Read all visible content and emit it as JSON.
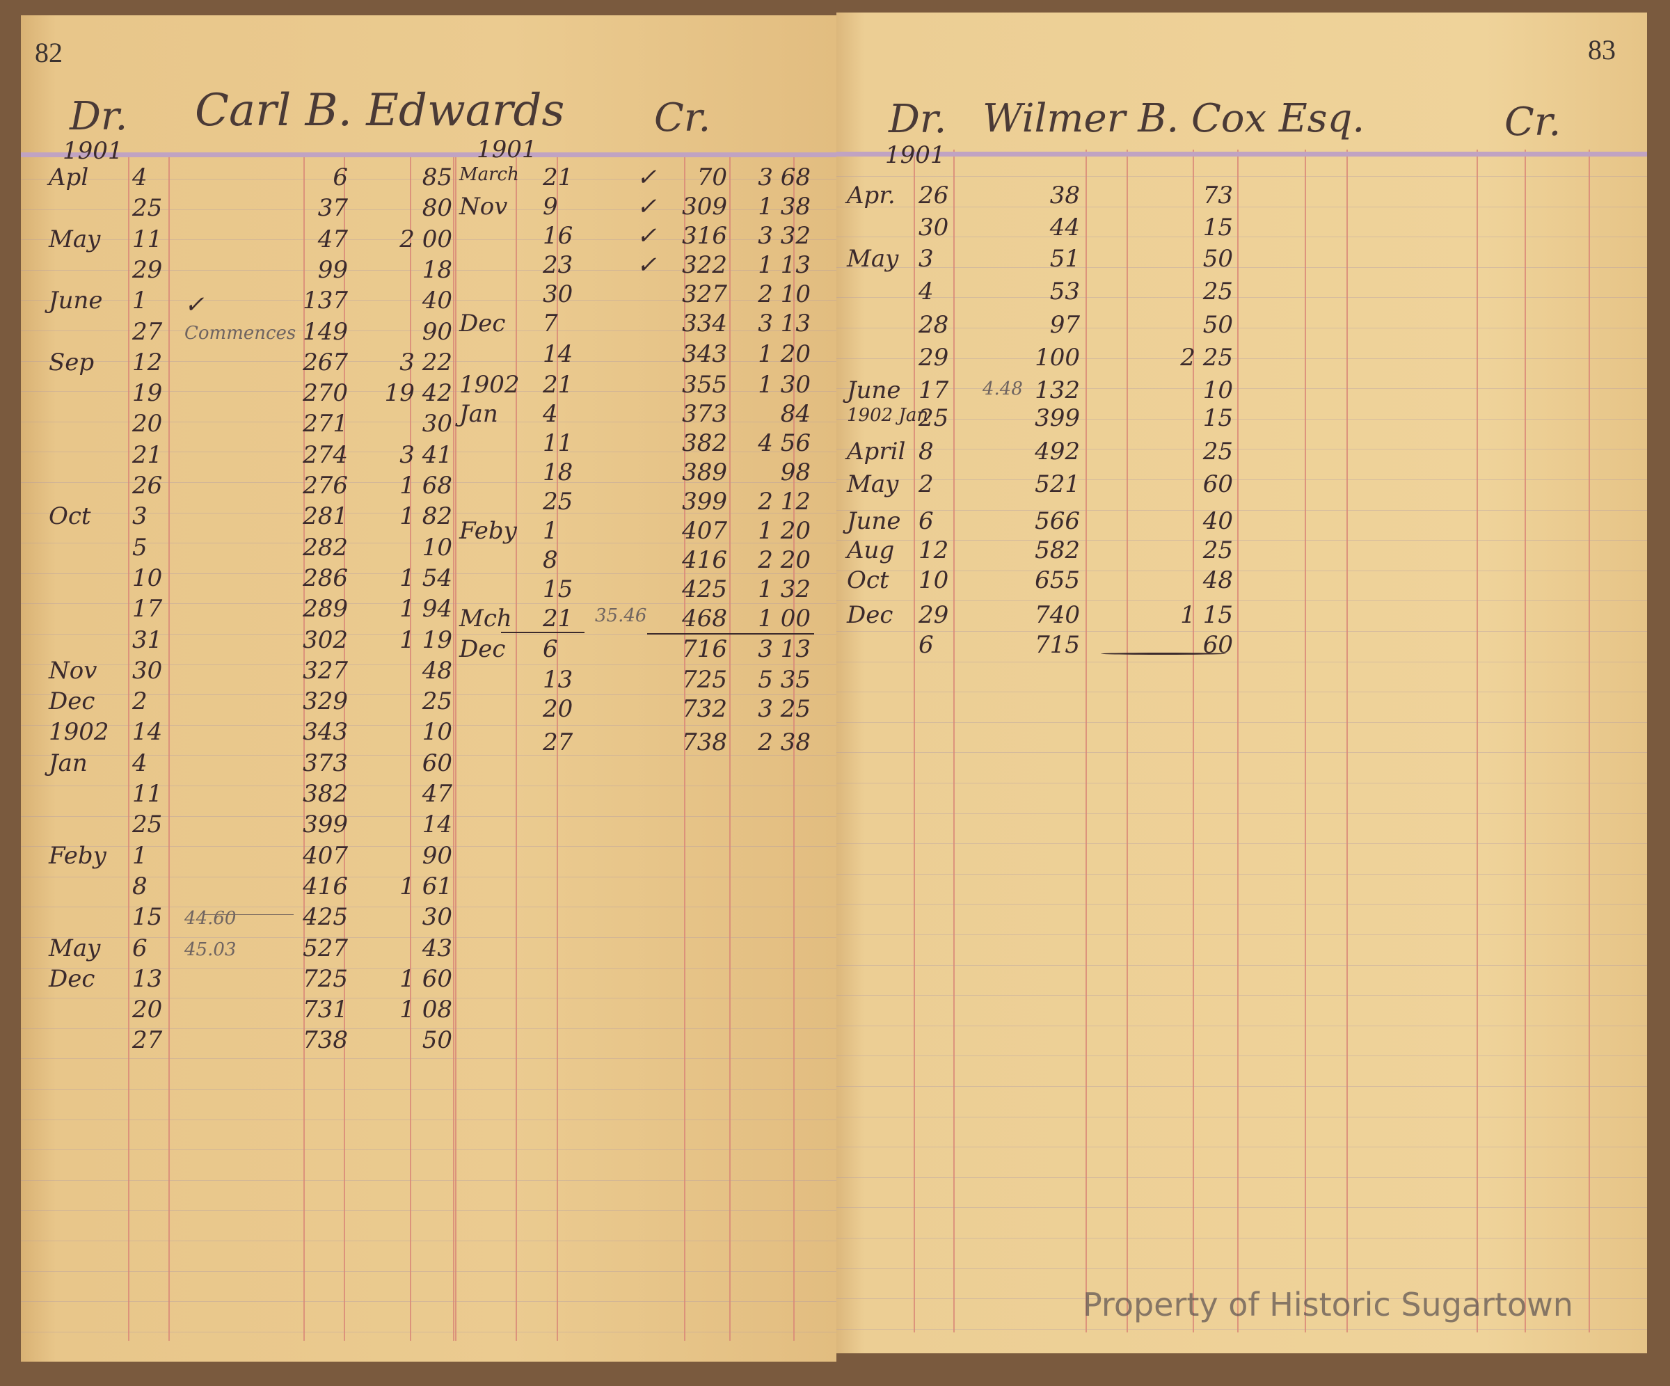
{
  "left_page": {
    "page_number": "82",
    "debit_label": "Dr.",
    "year": "1901",
    "account_name": "Carl B. Edwards",
    "credit_label": "Cr.",
    "credit_year": "1901",
    "debit_rows": [
      {
        "month": "Apl",
        "day": "4",
        "note": "",
        "folio": "6",
        "amount": "85"
      },
      {
        "month": "",
        "day": "25",
        "note": "",
        "folio": "37",
        "amount": "80"
      },
      {
        "month": "May",
        "day": "11",
        "note": "",
        "folio": "47",
        "amount": "2 00"
      },
      {
        "month": "",
        "day": "29",
        "note": "",
        "folio": "99",
        "amount": "18"
      },
      {
        "month": "June",
        "day": "1",
        "note": "✓",
        "folio": "137",
        "amount": "40"
      },
      {
        "month": "",
        "day": "27",
        "note": "Commences",
        "folio": "149",
        "amount": "90"
      },
      {
        "month": "Sep",
        "day": "12",
        "note": "",
        "folio": "267",
        "amount": "3 22"
      },
      {
        "month": "",
        "day": "19",
        "note": "",
        "folio": "270",
        "amount": "19 42"
      },
      {
        "month": "",
        "day": "20",
        "note": "",
        "folio": "271",
        "amount": "30"
      },
      {
        "month": "",
        "day": "21",
        "note": "",
        "folio": "274",
        "amount": "3 41"
      },
      {
        "month": "",
        "day": "26",
        "note": "",
        "folio": "276",
        "amount": "1 68"
      },
      {
        "month": "Oct",
        "day": "3",
        "note": "",
        "folio": "281",
        "amount": "1 82"
      },
      {
        "month": "",
        "day": "5",
        "note": "",
        "folio": "282",
        "amount": "10"
      },
      {
        "month": "",
        "day": "10",
        "note": "",
        "folio": "286",
        "amount": "1 54"
      },
      {
        "month": "",
        "day": "17",
        "note": "",
        "folio": "289",
        "amount": "1 94"
      },
      {
        "month": "",
        "day": "31",
        "note": "",
        "folio": "302",
        "amount": "1 19"
      },
      {
        "month": "Nov",
        "day": "30",
        "note": "",
        "folio": "327",
        "amount": "48"
      },
      {
        "month": "Dec",
        "day": "2",
        "note": "",
        "folio": "329",
        "amount": "25"
      },
      {
        "month": "1902",
        "day": "14",
        "note": "",
        "folio": "343",
        "amount": "10"
      },
      {
        "month": "Jan",
        "day": "4",
        "note": "",
        "folio": "373",
        "amount": "60"
      },
      {
        "month": "",
        "day": "11",
        "note": "",
        "folio": "382",
        "amount": "47"
      },
      {
        "month": "",
        "day": "25",
        "note": "",
        "folio": "399",
        "amount": "14"
      },
      {
        "month": "Feby",
        "day": "1",
        "note": "",
        "folio": "407",
        "amount": "90"
      },
      {
        "month": "",
        "day": "8",
        "note": "",
        "folio": "416",
        "amount": "1 61"
      },
      {
        "month": "",
        "day": "15",
        "note": "44.60",
        "folio": "425",
        "amount": "30"
      },
      {
        "month": "May",
        "day": "6",
        "note": "45.03",
        "folio": "527",
        "amount": "43"
      },
      {
        "month": "Dec",
        "day": "13",
        "note": "",
        "folio": "725",
        "amount": "1 60"
      },
      {
        "month": "",
        "day": "20",
        "note": "",
        "folio": "731",
        "amount": "1 08"
      },
      {
        "month": "",
        "day": "27",
        "note": "",
        "folio": "738",
        "amount": "50"
      }
    ],
    "credit_rows": [
      {
        "month": "March",
        "day": "21",
        "check": "✓",
        "folio": "70",
        "amount": "3 68"
      },
      {
        "month": "Nov",
        "day": "9",
        "check": "✓",
        "folio": "309",
        "amount": "1 38"
      },
      {
        "month": "",
        "day": "16",
        "check": "✓",
        "folio": "316",
        "amount": "3 32"
      },
      {
        "month": "",
        "day": "23",
        "check": "✓",
        "folio": "322",
        "amount": "1 13"
      },
      {
        "month": "",
        "day": "30",
        "check": "",
        "folio": "327",
        "amount": "2 10"
      },
      {
        "month": "Dec",
        "day": "7",
        "check": "",
        "folio": "334",
        "amount": "3 13"
      },
      {
        "month": "",
        "day": "14",
        "check": "",
        "folio": "343",
        "amount": "1 20"
      },
      {
        "month": "1902",
        "day": "21",
        "check": "",
        "folio": "355",
        "amount": "1 30"
      },
      {
        "month": "Jan",
        "day": "4",
        "check": "",
        "folio": "373",
        "amount": "84"
      },
      {
        "month": "",
        "day": "11",
        "check": "",
        "folio": "382",
        "amount": "4 56"
      },
      {
        "month": "",
        "day": "18",
        "check": "",
        "folio": "389",
        "amount": "98"
      },
      {
        "month": "",
        "day": "25",
        "check": "",
        "folio": "399",
        "amount": "2 12"
      },
      {
        "month": "Feby",
        "day": "1",
        "check": "",
        "folio": "407",
        "amount": "1 20"
      },
      {
        "month": "",
        "day": "8",
        "check": "",
        "folio": "416",
        "amount": "2 20"
      },
      {
        "month": "",
        "day": "15",
        "check": "",
        "folio": "425",
        "amount": "1 32"
      },
      {
        "month": "Mch",
        "day": "21",
        "check": "35.46",
        "folio": "468",
        "amount": "1 00"
      },
      {
        "month": "Dec",
        "day": "6",
        "check": "",
        "folio": "716",
        "amount": "3 13"
      },
      {
        "month": "",
        "day": "13",
        "check": "",
        "folio": "725",
        "amount": "5 35"
      },
      {
        "month": "",
        "day": "20",
        "check": "",
        "folio": "732",
        "amount": "3 25"
      },
      {
        "month": "",
        "day": "27",
        "check": "",
        "folio": "738",
        "amount": "2 38"
      }
    ]
  },
  "right_page": {
    "page_number": "83",
    "debit_label": "Dr.",
    "year": "1901",
    "account_name": "Wilmer B. Cox Esq.",
    "credit_label": "Cr.",
    "debit_rows": [
      {
        "month": "Apr.",
        "day": "26",
        "note": "",
        "folio": "38",
        "amount": "73"
      },
      {
        "month": "",
        "day": "30",
        "note": "",
        "folio": "44",
        "amount": "15"
      },
      {
        "month": "May",
        "day": "3",
        "note": "",
        "folio": "51",
        "amount": "50"
      },
      {
        "month": "",
        "day": "4",
        "note": "",
        "folio": "53",
        "amount": "25"
      },
      {
        "month": "",
        "day": "28",
        "note": "",
        "folio": "97",
        "amount": "50"
      },
      {
        "month": "",
        "day": "29",
        "note": "",
        "folio": "100",
        "amount": "2 25"
      },
      {
        "month": "June",
        "day": "17",
        "note": "4.48",
        "folio": "132",
        "amount": "10"
      },
      {
        "month": "1902 Jan",
        "day": "25",
        "note": "",
        "folio": "399",
        "amount": "15"
      },
      {
        "month": "April",
        "day": "8",
        "note": "",
        "folio": "492",
        "amount": "25"
      },
      {
        "month": "May",
        "day": "2",
        "note": "",
        "folio": "521",
        "amount": "60"
      },
      {
        "month": "June",
        "day": "6",
        "note": "",
        "folio": "566",
        "amount": "40"
      },
      {
        "month": "Aug",
        "day": "12",
        "note": "",
        "folio": "582",
        "amount": "25"
      },
      {
        "month": "Oct",
        "day": "10",
        "note": "",
        "folio": "655",
        "amount": "48"
      },
      {
        "month": "Dec",
        "day": "29",
        "note": "",
        "folio": "740",
        "amount": "1 15"
      },
      {
        "month": "",
        "day": "6",
        "note": "",
        "folio": "715",
        "amount": "60"
      }
    ]
  },
  "watermark": "Property of Historic Sugartown",
  "colors": {
    "paper": "#e9c88c",
    "rule_red": "#d98a78",
    "header_rule": "#c0a3c2",
    "ink": "#3b2a2c"
  }
}
